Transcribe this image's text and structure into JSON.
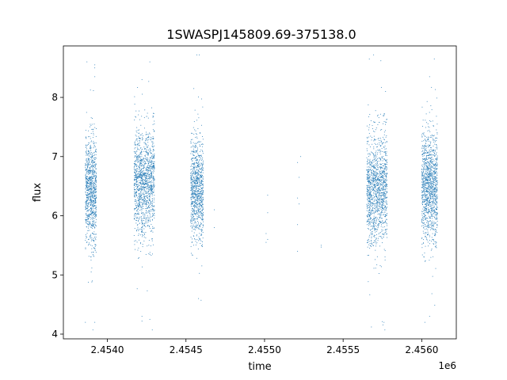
{
  "chart_data": {
    "type": "scatter",
    "title": "1SWASPJ145809.69-375138.0",
    "xlabel": "time",
    "ylabel": "flux",
    "x_offset_label": "1e6",
    "xlim": [
      2.45372,
      2.45622
    ],
    "ylim": [
      3.92,
      8.87
    ],
    "x_ticks": [
      {
        "value": 2.454,
        "label": "2.4540"
      },
      {
        "value": 2.4545,
        "label": "2.4545"
      },
      {
        "value": 2.455,
        "label": "2.4550"
      },
      {
        "value": 2.4555,
        "label": "2.4555"
      },
      {
        "value": 2.456,
        "label": "2.4560"
      }
    ],
    "y_ticks": [
      {
        "value": 4,
        "label": "4"
      },
      {
        "value": 5,
        "label": "5"
      },
      {
        "value": 6,
        "label": "6"
      },
      {
        "value": 7,
        "label": "7"
      },
      {
        "value": 8,
        "label": "8"
      }
    ],
    "point_color": "#1f77b4",
    "grid": false,
    "series": [
      {
        "clusters": [
          {
            "x_start": 2.45386,
            "x_end": 2.45393,
            "y_mean": 6.4,
            "y_spread": 0.45,
            "n": 900
          },
          {
            "x_start": 2.45417,
            "x_end": 2.4543,
            "y_mean": 6.55,
            "y_spread": 0.45,
            "n": 1300
          },
          {
            "x_start": 2.45453,
            "x_end": 2.45461,
            "y_mean": 6.45,
            "y_spread": 0.42,
            "n": 900
          },
          {
            "x_start": 2.45565,
            "x_end": 2.45578,
            "y_mean": 6.45,
            "y_spread": 0.45,
            "n": 1300
          },
          {
            "x_start": 2.456,
            "x_end": 2.4561,
            "y_mean": 6.5,
            "y_spread": 0.45,
            "n": 1200
          }
        ],
        "sparse_points": [
          [
            2.45468,
            6.1
          ],
          [
            2.45468,
            5.8
          ],
          [
            2.45502,
            6.35
          ],
          [
            2.45502,
            6.05
          ],
          [
            2.45501,
            5.7
          ],
          [
            2.45501,
            5.55
          ],
          [
            2.45502,
            5.6
          ],
          [
            2.45521,
            6.9
          ],
          [
            2.45522,
            6.65
          ],
          [
            2.45521,
            6.3
          ],
          [
            2.45522,
            6.2
          ],
          [
            2.45521,
            5.85
          ],
          [
            2.45521,
            5.4
          ],
          [
            2.45523,
            7.0
          ],
          [
            2.45536,
            5.5
          ],
          [
            2.45536,
            5.47
          ],
          [
            2.45387,
            8.6
          ],
          [
            2.45392,
            8.35
          ],
          [
            2.45392,
            8.55
          ],
          [
            2.45422,
            8.3
          ],
          [
            2.45427,
            8.6
          ],
          [
            2.45422,
            4.3
          ],
          [
            2.45422,
            4.22
          ],
          [
            2.45427,
            4.25
          ],
          [
            2.45386,
            4.2
          ],
          [
            2.45392,
            4.2
          ],
          [
            2.45455,
            8.15
          ],
          [
            2.45458,
            4.6
          ],
          [
            2.45574,
            8.62
          ],
          [
            2.45577,
            8.1
          ],
          [
            2.45568,
            4.12
          ],
          [
            2.45576,
            4.2
          ],
          [
            2.45605,
            8.35
          ],
          [
            2.45608,
            8.65
          ],
          [
            2.45602,
            4.2
          ],
          [
            2.45605,
            4.3
          ]
        ]
      }
    ]
  }
}
